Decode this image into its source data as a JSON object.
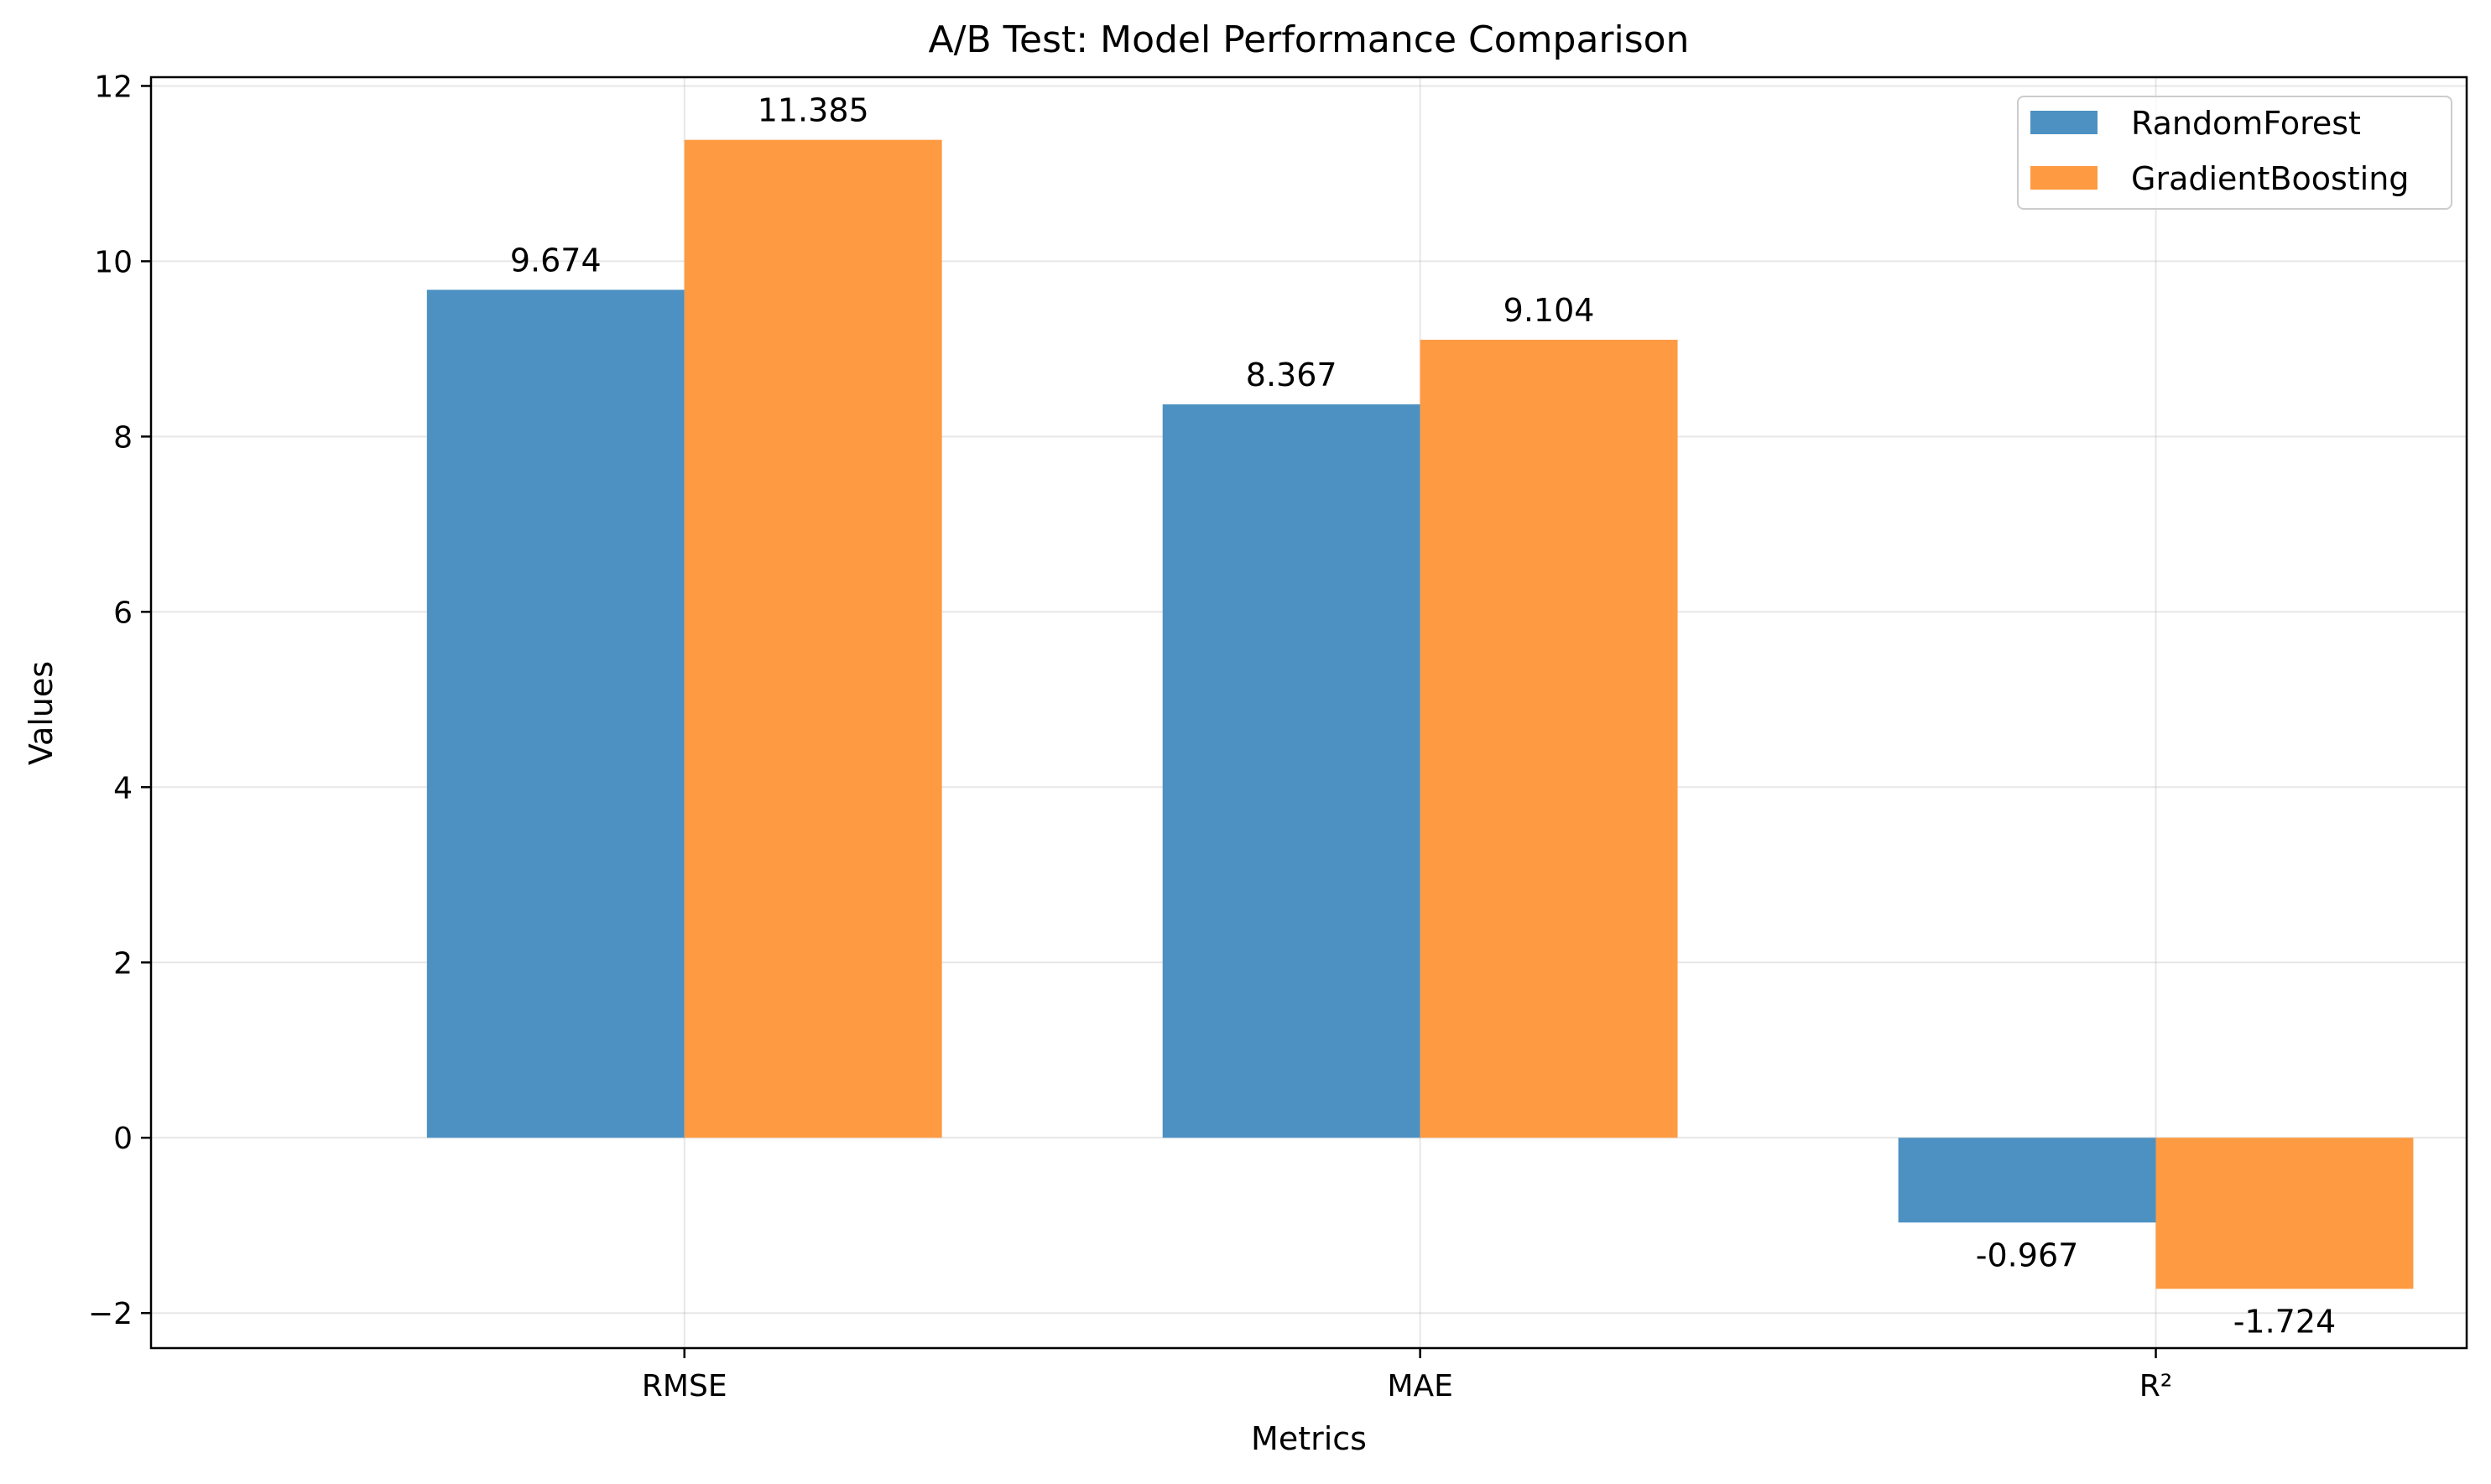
{
  "chart_data": {
    "type": "bar",
    "title": "A/B Test: Model Performance Comparison",
    "xlabel": "Metrics",
    "ylabel": "Values",
    "categories": [
      "RMSE",
      "MAE",
      "R²"
    ],
    "series": [
      {
        "name": "RandomForest",
        "color": "#4c91c2",
        "values": [
          9.674,
          8.367,
          -0.967
        ],
        "labels": [
          "9.674",
          "8.367",
          "-0.967"
        ]
      },
      {
        "name": "GradientBoosting",
        "color": "#fe9a42",
        "values": [
          11.385,
          9.104,
          -1.724
        ],
        "labels": [
          "11.385",
          "9.104",
          "-1.724"
        ]
      }
    ],
    "ylim": [
      -2.4,
      12.1
    ],
    "yticks": [
      -2,
      0,
      2,
      4,
      6,
      8,
      10,
      12
    ],
    "ytick_labels": [
      "−2",
      "0",
      "2",
      "4",
      "6",
      "8",
      "10",
      "12"
    ],
    "grid": true,
    "legend_position": "top-right"
  }
}
